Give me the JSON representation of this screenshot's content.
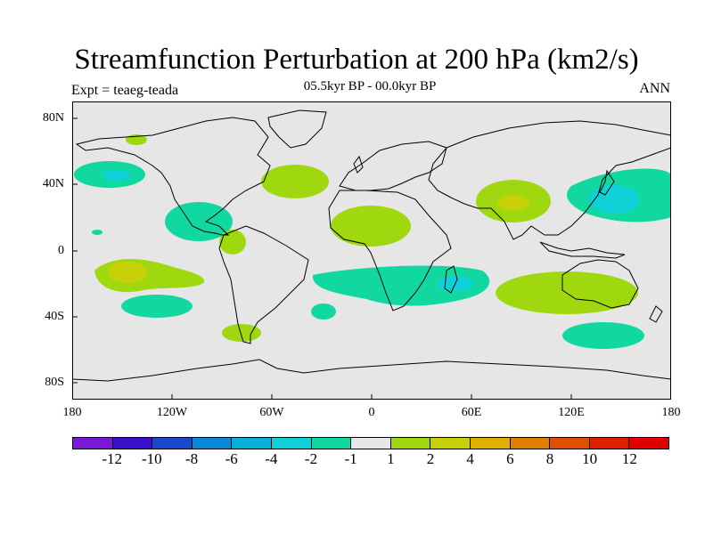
{
  "header": {
    "title": "Streamfunction Perturbation at 200 hPa (km2/s)",
    "subtitle": "05.5kyr BP - 00.0kyr BP",
    "experiment": "Expt = teaeg-teada",
    "period": "ANN"
  },
  "map": {
    "projection": "cylindrical equidistant",
    "lat_ticks": [
      "80N",
      "40N",
      "0",
      "40S",
      "80S"
    ],
    "lon_ticks": [
      "180",
      "120W",
      "60W",
      "0",
      "60E",
      "120E",
      "180"
    ],
    "background_color": "#e6e6e6",
    "coastline_color": "#000000"
  },
  "colorbar": {
    "labels": [
      "-12",
      "-10",
      "-8",
      "-6",
      "-4",
      "-2",
      "-1",
      "1",
      "2",
      "4",
      "6",
      "8",
      "10",
      "12"
    ],
    "colors": [
      "#7a18d8",
      "#3a10cc",
      "#1a48cc",
      "#0a88d8",
      "#08b0d8",
      "#10d0d8",
      "#10d8a0",
      "#e6e6e6",
      "#a0d810",
      "#c8d008",
      "#e0b000",
      "#e08000",
      "#e05000",
      "#e02000",
      "#e00000"
    ]
  },
  "chart_data": {
    "type": "filled-contour map",
    "title": "Streamfunction Perturbation at 200 hPa (km2/s)",
    "subtitle": "05.5kyr BP - 00.0kyr BP",
    "units": "km2/s",
    "contour_levels": [
      -12,
      -10,
      -8,
      -6,
      -4,
      -2,
      -1,
      1,
      2,
      4,
      6,
      8,
      10,
      12
    ],
    "lat_range": [
      -90,
      90
    ],
    "lon_range": [
      -180,
      180
    ],
    "features": [
      {
        "region": "Western Pacific / Japan",
        "sign": "negative",
        "peak": -4
      },
      {
        "region": "North Pacific near date line",
        "sign": "negative",
        "peak": -2
      },
      {
        "region": "Central America / Caribbean",
        "sign": "negative",
        "peak": -2
      },
      {
        "region": "Southern Africa / Madagascar",
        "sign": "negative",
        "peak": -4
      },
      {
        "region": "South Pacific",
        "sign": "negative",
        "peak": -2
      },
      {
        "region": "Southern Indian Ocean / Australia south",
        "sign": "negative",
        "peak": -2
      },
      {
        "region": "Tibet / South Asia",
        "sign": "positive",
        "peak": 4
      },
      {
        "region": "North Atlantic",
        "sign": "positive",
        "peak": 2
      },
      {
        "region": "North Africa",
        "sign": "positive",
        "peak": 2
      },
      {
        "region": "Tropical South Pacific",
        "sign": "positive",
        "peak": 4
      },
      {
        "region": "Australia",
        "sign": "positive",
        "peak": 2
      },
      {
        "region": "Northern South America",
        "sign": "positive",
        "peak": 2
      },
      {
        "region": "Southern South America",
        "sign": "positive",
        "peak": 2
      }
    ]
  }
}
